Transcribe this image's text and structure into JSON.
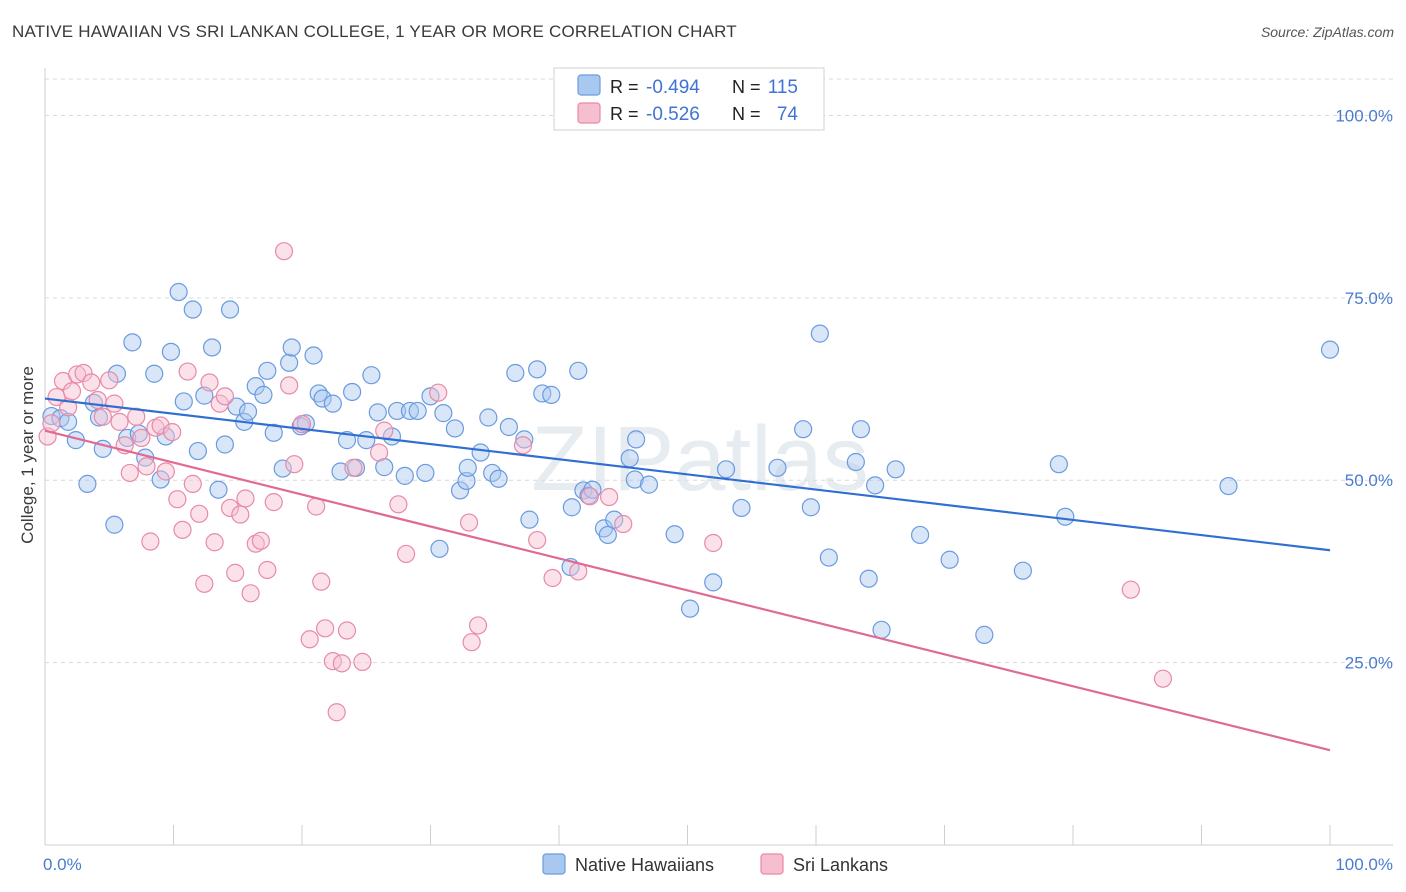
{
  "header": {
    "title": "NATIVE HAWAIIAN VS SRI LANKAN COLLEGE, 1 YEAR OR MORE CORRELATION CHART",
    "source": "Source: ZipAtlas.com"
  },
  "watermark": "ZIPatlas",
  "colors": {
    "blue_fill": "#a9c8ef",
    "blue_stroke": "#6a9be0",
    "blue_line": "#2f6fd1",
    "pink_fill": "#f6bfd0",
    "pink_stroke": "#e88aa8",
    "pink_line": "#e06a94",
    "tick_text": "#4a7bd0",
    "grid": "#d9d9d9"
  },
  "legend": {
    "rows": [
      {
        "r_label": "R =",
        "r_value": "-0.494",
        "n_label": "N =",
        "n_value": "115",
        "series": "blue"
      },
      {
        "r_label": "R =",
        "r_value": "-0.526",
        "n_label": "N =",
        "n_value": "74",
        "series": "pink"
      }
    ]
  },
  "bottom_legend": [
    "Native Hawaiians",
    "Sri Lankans"
  ],
  "chart_data": {
    "type": "scatter",
    "title": "NATIVE HAWAIIAN VS SRI LANKAN COLLEGE, 1 YEAR OR MORE CORRELATION CHART",
    "xlabel": "",
    "ylabel": "College, 1 year or more",
    "xlim": [
      0,
      100
    ],
    "ylim": [
      0,
      105
    ],
    "x_tick_labels": [
      "0.0%",
      "100.0%"
    ],
    "y_ticks": [
      25,
      50,
      75,
      100
    ],
    "y_tick_labels": [
      "25.0%",
      "50.0%",
      "75.0%",
      "100.0%"
    ],
    "grid": true,
    "legend_position": "top-center",
    "series": [
      {
        "name": "Native Hawaiians",
        "color": "blue",
        "trend": {
          "x": [
            0,
            100
          ],
          "y": [
            61.2,
            40.4
          ]
        },
        "points": [
          [
            0.5,
            58.8
          ],
          [
            1.2,
            58.5
          ],
          [
            1.8,
            58.0
          ],
          [
            2.4,
            55.5
          ],
          [
            3.3,
            49.5
          ],
          [
            3.8,
            60.6
          ],
          [
            4.2,
            58.6
          ],
          [
            4.5,
            54.3
          ],
          [
            5.4,
            43.9
          ],
          [
            5.6,
            64.6
          ],
          [
            6.4,
            55.8
          ],
          [
            6.8,
            68.9
          ],
          [
            7.3,
            56.4
          ],
          [
            7.8,
            53.1
          ],
          [
            8.5,
            64.6
          ],
          [
            9.0,
            50.1
          ],
          [
            9.4,
            56.0
          ],
          [
            9.8,
            67.6
          ],
          [
            10.4,
            75.8
          ],
          [
            10.8,
            60.8
          ],
          [
            11.5,
            73.4
          ],
          [
            11.9,
            54.0
          ],
          [
            12.4,
            61.6
          ],
          [
            13.0,
            68.2
          ],
          [
            13.5,
            48.7
          ],
          [
            14.0,
            54.9
          ],
          [
            14.4,
            73.4
          ],
          [
            14.9,
            60.1
          ],
          [
            15.5,
            58.0
          ],
          [
            15.8,
            59.4
          ],
          [
            16.4,
            62.9
          ],
          [
            17.0,
            61.7
          ],
          [
            17.3,
            65.0
          ],
          [
            17.8,
            56.5
          ],
          [
            18.5,
            51.6
          ],
          [
            19.0,
            66.1
          ],
          [
            19.2,
            68.2
          ],
          [
            19.9,
            57.4
          ],
          [
            20.3,
            57.8
          ],
          [
            20.9,
            67.1
          ],
          [
            21.3,
            61.9
          ],
          [
            21.6,
            61.2
          ],
          [
            22.4,
            60.5
          ],
          [
            23.0,
            51.2
          ],
          [
            23.5,
            55.5
          ],
          [
            23.9,
            62.1
          ],
          [
            24.2,
            51.7
          ],
          [
            25.0,
            55.5
          ],
          [
            25.4,
            64.4
          ],
          [
            25.9,
            59.3
          ],
          [
            26.4,
            51.8
          ],
          [
            27.0,
            56.0
          ],
          [
            27.4,
            59.5
          ],
          [
            28.0,
            50.6
          ],
          [
            28.4,
            59.5
          ],
          [
            29.0,
            59.5
          ],
          [
            29.6,
            51.0
          ],
          [
            30.0,
            61.5
          ],
          [
            30.7,
            40.6
          ],
          [
            31.0,
            59.2
          ],
          [
            31.9,
            57.1
          ],
          [
            32.3,
            48.6
          ],
          [
            32.8,
            49.9
          ],
          [
            32.9,
            51.7
          ],
          [
            33.9,
            53.8
          ],
          [
            34.5,
            58.6
          ],
          [
            34.8,
            51.0
          ],
          [
            35.3,
            50.2
          ],
          [
            36.1,
            57.3
          ],
          [
            36.6,
            64.7
          ],
          [
            37.3,
            55.6
          ],
          [
            37.7,
            44.6
          ],
          [
            38.3,
            65.2
          ],
          [
            38.7,
            61.9
          ],
          [
            39.4,
            61.7
          ],
          [
            40.9,
            38.1
          ],
          [
            41.0,
            46.3
          ],
          [
            41.5,
            65.0
          ],
          [
            41.9,
            48.6
          ],
          [
            42.3,
            47.9
          ],
          [
            42.6,
            48.7
          ],
          [
            43.5,
            43.4
          ],
          [
            43.8,
            42.5
          ],
          [
            44.3,
            44.6
          ],
          [
            45.5,
            53.0
          ],
          [
            45.9,
            50.1
          ],
          [
            46.0,
            55.6
          ],
          [
            47.0,
            49.4
          ],
          [
            49.0,
            42.6
          ],
          [
            50.2,
            32.4
          ],
          [
            52.0,
            36.0
          ],
          [
            53.0,
            51.5
          ],
          [
            54.2,
            46.2
          ],
          [
            57.0,
            51.7
          ],
          [
            59.0,
            57.0
          ],
          [
            59.6,
            46.3
          ],
          [
            60.3,
            70.1
          ],
          [
            61.0,
            39.4
          ],
          [
            63.1,
            52.5
          ],
          [
            63.5,
            57.0
          ],
          [
            64.1,
            36.5
          ],
          [
            64.6,
            49.3
          ],
          [
            65.1,
            29.5
          ],
          [
            66.2,
            51.5
          ],
          [
            68.1,
            42.5
          ],
          [
            70.4,
            39.1
          ],
          [
            73.1,
            28.8
          ],
          [
            76.1,
            37.6
          ],
          [
            78.9,
            52.2
          ],
          [
            79.4,
            45.0
          ],
          [
            92.1,
            49.2
          ],
          [
            100.0,
            67.9
          ]
        ]
      },
      {
        "name": "Sri Lankans",
        "color": "pink",
        "trend": {
          "x": [
            0,
            100
          ],
          "y": [
            56.8,
            13.0
          ]
        },
        "points": [
          [
            0.2,
            56.0
          ],
          [
            0.5,
            57.8
          ],
          [
            0.9,
            61.4
          ],
          [
            1.4,
            63.6
          ],
          [
            1.8,
            60.0
          ],
          [
            2.1,
            62.2
          ],
          [
            2.5,
            64.5
          ],
          [
            3.0,
            64.7
          ],
          [
            3.6,
            63.4
          ],
          [
            4.1,
            61.0
          ],
          [
            4.5,
            58.7
          ],
          [
            5.0,
            63.7
          ],
          [
            5.4,
            60.5
          ],
          [
            5.8,
            58.0
          ],
          [
            6.2,
            54.8
          ],
          [
            6.6,
            51.0
          ],
          [
            7.1,
            58.7
          ],
          [
            7.5,
            55.8
          ],
          [
            7.9,
            51.9
          ],
          [
            8.2,
            41.6
          ],
          [
            8.6,
            57.2
          ],
          [
            9.0,
            57.5
          ],
          [
            9.4,
            51.2
          ],
          [
            9.9,
            56.6
          ],
          [
            10.3,
            47.4
          ],
          [
            10.7,
            43.2
          ],
          [
            11.1,
            64.9
          ],
          [
            11.5,
            49.5
          ],
          [
            12.0,
            45.4
          ],
          [
            12.4,
            35.8
          ],
          [
            12.8,
            63.4
          ],
          [
            13.2,
            41.5
          ],
          [
            13.6,
            60.5
          ],
          [
            14.0,
            61.5
          ],
          [
            14.4,
            46.2
          ],
          [
            14.8,
            37.3
          ],
          [
            15.2,
            45.3
          ],
          [
            15.6,
            47.5
          ],
          [
            16.0,
            34.5
          ],
          [
            16.4,
            41.3
          ],
          [
            16.8,
            41.7
          ],
          [
            17.3,
            37.7
          ],
          [
            17.8,
            47.0
          ],
          [
            18.6,
            81.4
          ],
          [
            19.0,
            63.0
          ],
          [
            19.4,
            52.2
          ],
          [
            20.0,
            57.7
          ],
          [
            20.6,
            28.2
          ],
          [
            21.1,
            46.4
          ],
          [
            21.5,
            36.1
          ],
          [
            21.8,
            29.7
          ],
          [
            22.4,
            25.2
          ],
          [
            22.7,
            18.2
          ],
          [
            23.1,
            24.9
          ],
          [
            23.5,
            29.4
          ],
          [
            24.0,
            51.7
          ],
          [
            24.7,
            25.1
          ],
          [
            26.0,
            53.8
          ],
          [
            26.4,
            56.8
          ],
          [
            27.5,
            46.7
          ],
          [
            28.1,
            39.9
          ],
          [
            30.6,
            62.0
          ],
          [
            33.0,
            44.2
          ],
          [
            33.2,
            27.8
          ],
          [
            33.7,
            30.1
          ],
          [
            37.2,
            54.8
          ],
          [
            38.3,
            41.8
          ],
          [
            39.5,
            36.6
          ],
          [
            41.5,
            37.5
          ],
          [
            42.4,
            47.8
          ],
          [
            43.9,
            47.7
          ],
          [
            45.0,
            44.0
          ],
          [
            52.0,
            41.4
          ],
          [
            84.5,
            35.0
          ],
          [
            87.0,
            22.8
          ]
        ]
      }
    ]
  }
}
